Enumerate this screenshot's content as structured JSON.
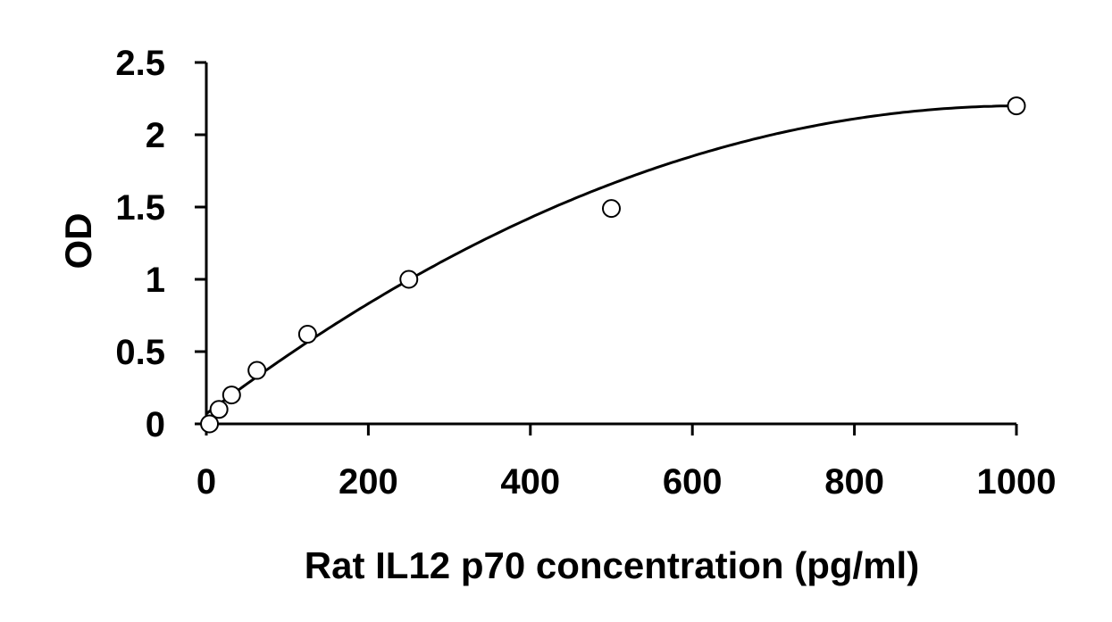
{
  "chart_data": {
    "type": "scatter",
    "title": "",
    "xlabel": "Rat IL12 p70 concentration (pg/ml)",
    "ylabel": "OD",
    "xlim": [
      0,
      1000
    ],
    "ylim": [
      0,
      2.5
    ],
    "x_ticks": [
      0,
      200,
      400,
      600,
      800,
      1000
    ],
    "y_ticks": [
      0,
      0.5,
      1,
      1.5,
      2,
      2.5
    ],
    "x_tick_labels": [
      "0",
      "200",
      "400",
      "600",
      "800",
      "1000"
    ],
    "y_tick_labels": [
      "0",
      "0.5",
      "1",
      "1.5",
      "2",
      "2.5"
    ],
    "grid": false,
    "legend": "none",
    "colors": {
      "axis": "#000000",
      "marker_edge": "#000000",
      "marker_fill": "#ffffff",
      "curve": "#000000"
    },
    "series": [
      {
        "marker": "open-circle",
        "x": [
          3.9,
          15.6,
          31.2,
          62.5,
          125,
          250,
          500,
          1000
        ],
        "y": [
          0.0,
          0.1,
          0.2,
          0.37,
          0.62,
          1.0,
          1.49,
          2.2
        ]
      }
    ],
    "fit_curve": {
      "model": "polynomial-2",
      "coefficients": [
        0.07,
        0.00423,
        -2.1e-06
      ]
    }
  }
}
